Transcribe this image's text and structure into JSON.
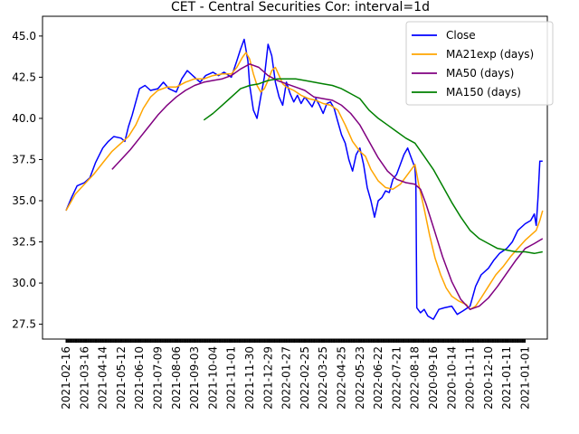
{
  "chart_data": {
    "type": "line",
    "title": "CET - Central Securities Cor: interval=1d",
    "xlabel": "",
    "ylabel": "",
    "ylim": [
      26.6,
      46.2
    ],
    "y_ticks": [
      27.5,
      30.0,
      32.5,
      35.0,
      37.5,
      40.0,
      42.5,
      45.0
    ],
    "x_ticks": [
      "2021-02-16",
      "2021-03-16",
      "2021-04-14",
      "2021-05-12",
      "2021-06-10",
      "2021-07-09",
      "2021-08-06",
      "2021-09-03",
      "2021-10-04",
      "2021-11-01",
      "2021-11-30",
      "2021-12-29",
      "2022-01-27",
      "2022-02-25",
      "2022-03-25",
      "2022-04-25",
      "2022-05-23",
      "2022-06-22",
      "2022-07-21",
      "2022-08-18",
      "2020-09-16",
      "2020-10-14",
      "2020-11-11",
      "2020-12-10",
      "2021-01-11",
      "2021-01-01"
    ],
    "legend_position": "top-right",
    "grid": false,
    "colors": {
      "Close": "#0000ff",
      "MA21exp (days)": "#ffa500",
      "MA50 (days)": "#800080",
      "MA150 (days)": "#008000"
    },
    "series": [
      {
        "name": "Close",
        "points": [
          [
            0,
            34.4
          ],
          [
            0.3,
            35.2
          ],
          [
            0.6,
            35.9
          ],
          [
            1,
            36.1
          ],
          [
            1.3,
            36.4
          ],
          [
            1.6,
            37.3
          ],
          [
            2,
            38.2
          ],
          [
            2.3,
            38.6
          ],
          [
            2.6,
            38.9
          ],
          [
            3,
            38.8
          ],
          [
            3.2,
            38.6
          ],
          [
            3.4,
            39.5
          ],
          [
            3.6,
            40.2
          ],
          [
            3.8,
            41.0
          ],
          [
            4,
            41.8
          ],
          [
            4.3,
            42.0
          ],
          [
            4.6,
            41.7
          ],
          [
            5,
            41.8
          ],
          [
            5.3,
            42.2
          ],
          [
            5.6,
            41.8
          ],
          [
            6,
            41.6
          ],
          [
            6.3,
            42.4
          ],
          [
            6.6,
            42.9
          ],
          [
            7,
            42.5
          ],
          [
            7.3,
            42.2
          ],
          [
            7.6,
            42.6
          ],
          [
            8,
            42.8
          ],
          [
            8.3,
            42.6
          ],
          [
            8.6,
            42.8
          ],
          [
            9,
            42.5
          ],
          [
            9.3,
            43.5
          ],
          [
            9.5,
            44.2
          ],
          [
            9.7,
            44.8
          ],
          [
            9.9,
            43.5
          ],
          [
            10,
            42.0
          ],
          [
            10.2,
            40.5
          ],
          [
            10.4,
            40.0
          ],
          [
            10.6,
            41.3
          ],
          [
            10.8,
            42.5
          ],
          [
            11,
            44.5
          ],
          [
            11.2,
            43.8
          ],
          [
            11.4,
            42.2
          ],
          [
            11.6,
            41.3
          ],
          [
            11.8,
            40.8
          ],
          [
            12,
            42.2
          ],
          [
            12.2,
            41.5
          ],
          [
            12.4,
            41.0
          ],
          [
            12.6,
            41.4
          ],
          [
            12.8,
            40.9
          ],
          [
            13,
            41.3
          ],
          [
            13.2,
            41.0
          ],
          [
            13.4,
            40.7
          ],
          [
            13.6,
            41.2
          ],
          [
            13.8,
            40.8
          ],
          [
            14,
            40.3
          ],
          [
            14.2,
            40.9
          ],
          [
            14.4,
            41.0
          ],
          [
            14.6,
            40.6
          ],
          [
            14.8,
            39.8
          ],
          [
            15,
            39.0
          ],
          [
            15.2,
            38.5
          ],
          [
            15.4,
            37.5
          ],
          [
            15.6,
            36.8
          ],
          [
            15.8,
            37.8
          ],
          [
            16,
            38.2
          ],
          [
            16.2,
            37.2
          ],
          [
            16.4,
            35.8
          ],
          [
            16.6,
            35.0
          ],
          [
            16.8,
            34.0
          ],
          [
            17,
            35.0
          ],
          [
            17.2,
            35.2
          ],
          [
            17.4,
            35.6
          ],
          [
            17.6,
            35.5
          ],
          [
            17.8,
            36.3
          ],
          [
            18,
            36.6
          ],
          [
            18.2,
            37.2
          ],
          [
            18.4,
            37.8
          ],
          [
            18.6,
            38.2
          ],
          [
            18.8,
            37.6
          ],
          [
            19,
            37.0
          ],
          [
            19.05,
            36.0
          ],
          [
            19.1,
            28.5
          ],
          [
            19.3,
            28.2
          ],
          [
            19.5,
            28.4
          ],
          [
            19.7,
            28.0
          ],
          [
            20,
            27.8
          ],
          [
            20.3,
            28.4
          ],
          [
            20.6,
            28.5
          ],
          [
            21,
            28.6
          ],
          [
            21.3,
            28.1
          ],
          [
            21.6,
            28.3
          ],
          [
            22,
            28.6
          ],
          [
            22.3,
            29.8
          ],
          [
            22.6,
            30.5
          ],
          [
            23,
            30.9
          ],
          [
            23.3,
            31.4
          ],
          [
            23.6,
            31.8
          ],
          [
            24,
            32.1
          ],
          [
            24.3,
            32.5
          ],
          [
            24.6,
            33.2
          ],
          [
            25,
            33.6
          ],
          [
            25.3,
            33.8
          ],
          [
            25.5,
            34.2
          ],
          [
            25.6,
            33.5
          ],
          [
            25.7,
            35.2
          ],
          [
            25.8,
            37.4
          ],
          [
            25.95,
            37.4
          ]
        ]
      },
      {
        "name": "MA21exp (days)",
        "points": [
          [
            0,
            34.4
          ],
          [
            0.5,
            35.4
          ],
          [
            1,
            36.0
          ],
          [
            1.5,
            36.6
          ],
          [
            2,
            37.3
          ],
          [
            2.5,
            38.0
          ],
          [
            3,
            38.5
          ],
          [
            3.4,
            38.9
          ],
          [
            3.8,
            39.6
          ],
          [
            4.2,
            40.6
          ],
          [
            4.6,
            41.3
          ],
          [
            5,
            41.7
          ],
          [
            5.5,
            41.9
          ],
          [
            6,
            41.9
          ],
          [
            6.5,
            42.2
          ],
          [
            7,
            42.4
          ],
          [
            7.5,
            42.4
          ],
          [
            8,
            42.6
          ],
          [
            8.5,
            42.7
          ],
          [
            9,
            42.7
          ],
          [
            9.3,
            43.1
          ],
          [
            9.6,
            43.7
          ],
          [
            9.8,
            44.0
          ],
          [
            10,
            43.6
          ],
          [
            10.2,
            42.7
          ],
          [
            10.4,
            42.0
          ],
          [
            10.6,
            41.6
          ],
          [
            10.8,
            41.8
          ],
          [
            11,
            42.3
          ],
          [
            11.2,
            42.9
          ],
          [
            11.4,
            43.1
          ],
          [
            11.6,
            42.6
          ],
          [
            11.8,
            42.1
          ],
          [
            12,
            41.9
          ],
          [
            12.4,
            41.7
          ],
          [
            12.8,
            41.4
          ],
          [
            13.2,
            41.2
          ],
          [
            13.6,
            41.1
          ],
          [
            14,
            40.9
          ],
          [
            14.4,
            40.8
          ],
          [
            14.8,
            40.5
          ],
          [
            15.2,
            39.6
          ],
          [
            15.6,
            38.6
          ],
          [
            16,
            38.0
          ],
          [
            16.3,
            37.7
          ],
          [
            16.6,
            36.9
          ],
          [
            17,
            36.2
          ],
          [
            17.4,
            35.8
          ],
          [
            17.8,
            35.7
          ],
          [
            18.2,
            36.0
          ],
          [
            18.6,
            36.6
          ],
          [
            19,
            37.2
          ],
          [
            19.2,
            36.0
          ],
          [
            19.5,
            34.5
          ],
          [
            19.8,
            32.9
          ],
          [
            20.1,
            31.5
          ],
          [
            20.4,
            30.5
          ],
          [
            20.7,
            29.7
          ],
          [
            21,
            29.2
          ],
          [
            21.4,
            28.9
          ],
          [
            21.8,
            28.7
          ],
          [
            22,
            28.4
          ],
          [
            22.3,
            28.6
          ],
          [
            22.6,
            29.1
          ],
          [
            23,
            29.8
          ],
          [
            23.4,
            30.5
          ],
          [
            23.8,
            31.0
          ],
          [
            24.2,
            31.6
          ],
          [
            24.6,
            32.1
          ],
          [
            25,
            32.6
          ],
          [
            25.4,
            33.0
          ],
          [
            25.6,
            33.2
          ],
          [
            25.8,
            33.8
          ],
          [
            25.95,
            34.4
          ]
        ]
      },
      {
        "name": "MA50 (days)",
        "points": [
          [
            2.5,
            36.9
          ],
          [
            3,
            37.5
          ],
          [
            3.5,
            38.1
          ],
          [
            4,
            38.8
          ],
          [
            4.5,
            39.5
          ],
          [
            5,
            40.2
          ],
          [
            5.5,
            40.8
          ],
          [
            6,
            41.3
          ],
          [
            6.5,
            41.7
          ],
          [
            7,
            42.0
          ],
          [
            7.5,
            42.2
          ],
          [
            8,
            42.3
          ],
          [
            8.5,
            42.4
          ],
          [
            9,
            42.6
          ],
          [
            9.5,
            43.0
          ],
          [
            10,
            43.3
          ],
          [
            10.5,
            43.1
          ],
          [
            11,
            42.6
          ],
          [
            11.5,
            42.3
          ],
          [
            12,
            42.1
          ],
          [
            12.5,
            41.9
          ],
          [
            13,
            41.7
          ],
          [
            13.5,
            41.3
          ],
          [
            14,
            41.2
          ],
          [
            14.5,
            41.1
          ],
          [
            15,
            40.8
          ],
          [
            15.5,
            40.3
          ],
          [
            16,
            39.6
          ],
          [
            16.5,
            38.6
          ],
          [
            17,
            37.6
          ],
          [
            17.5,
            36.8
          ],
          [
            18,
            36.3
          ],
          [
            18.5,
            36.1
          ],
          [
            19,
            36.0
          ],
          [
            19.3,
            35.7
          ],
          [
            19.6,
            34.8
          ],
          [
            20,
            33.4
          ],
          [
            20.5,
            31.6
          ],
          [
            21,
            30.1
          ],
          [
            21.5,
            29.0
          ],
          [
            22,
            28.4
          ],
          [
            22.5,
            28.6
          ],
          [
            23,
            29.1
          ],
          [
            23.5,
            29.8
          ],
          [
            24,
            30.6
          ],
          [
            24.5,
            31.4
          ],
          [
            25,
            32.1
          ],
          [
            25.5,
            32.4
          ],
          [
            25.95,
            32.7
          ]
        ]
      },
      {
        "name": "MA150 (days)",
        "points": [
          [
            7.5,
            39.9
          ],
          [
            8,
            40.3
          ],
          [
            8.5,
            40.8
          ],
          [
            9,
            41.3
          ],
          [
            9.5,
            41.8
          ],
          [
            10,
            42.0
          ],
          [
            10.5,
            42.1
          ],
          [
            11,
            42.3
          ],
          [
            11.5,
            42.4
          ],
          [
            12,
            42.4
          ],
          [
            12.5,
            42.4
          ],
          [
            13,
            42.3
          ],
          [
            13.5,
            42.2
          ],
          [
            14,
            42.1
          ],
          [
            14.5,
            42.0
          ],
          [
            15,
            41.8
          ],
          [
            15.5,
            41.5
          ],
          [
            16,
            41.2
          ],
          [
            16.5,
            40.5
          ],
          [
            17,
            40.0
          ],
          [
            17.5,
            39.6
          ],
          [
            18,
            39.2
          ],
          [
            18.5,
            38.8
          ],
          [
            19,
            38.5
          ],
          [
            19.5,
            37.7
          ],
          [
            20,
            36.9
          ],
          [
            20.5,
            35.9
          ],
          [
            21,
            34.9
          ],
          [
            21.5,
            34.0
          ],
          [
            22,
            33.2
          ],
          [
            22.5,
            32.7
          ],
          [
            23,
            32.4
          ],
          [
            23.5,
            32.1
          ],
          [
            24,
            32.0
          ],
          [
            24.5,
            31.9
          ],
          [
            25,
            31.9
          ],
          [
            25.5,
            31.8
          ],
          [
            25.95,
            31.9
          ]
        ]
      }
    ]
  }
}
